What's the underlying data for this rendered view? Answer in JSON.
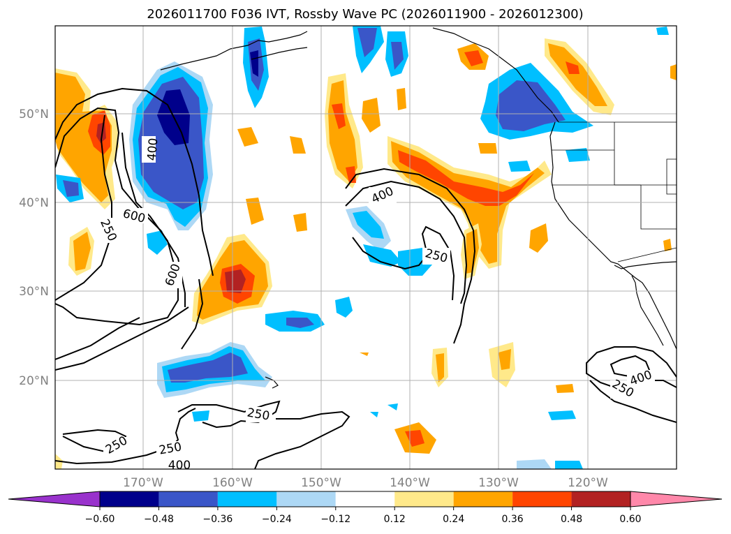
{
  "title": "2026011700 F036 IVT, Rossby Wave PC (2026011900 - 2026012300)",
  "lat_labels": [
    "50°N",
    "40°N",
    "30°N",
    "20°N"
  ],
  "lon_labels": [
    "170°W",
    "160°W",
    "150°W",
    "140°W",
    "130°W",
    "120°W"
  ],
  "colorbar": {
    "ticks": [
      "−0.60",
      "−0.48",
      "−0.36",
      "−0.24",
      "−0.12",
      "0.12",
      "0.24",
      "0.36",
      "0.48",
      "0.60"
    ],
    "colors": [
      "#9932cc",
      "#00008b",
      "#3a56c8",
      "#00bfff",
      "#add8f5",
      "#ffffff",
      "#ffe98a",
      "#ffa500",
      "#ff4500",
      "#b22222",
      "#ff88aa"
    ]
  },
  "contour_labels": [
    "400",
    "600",
    "250",
    "600",
    "400",
    "250",
    "250",
    "250",
    "250",
    "400",
    "250",
    "400"
  ],
  "colors": {
    "shade_dark_blue": "#00008b",
    "shade_mid_blue": "#3a56c8",
    "shade_cyan": "#00bfff",
    "shade_light_blue": "#add8f5",
    "shade_yellow": "#ffe98a",
    "shade_orange": "#ffa500",
    "shade_red_orange": "#ff4500",
    "shade_dark_red": "#b22222"
  }
}
